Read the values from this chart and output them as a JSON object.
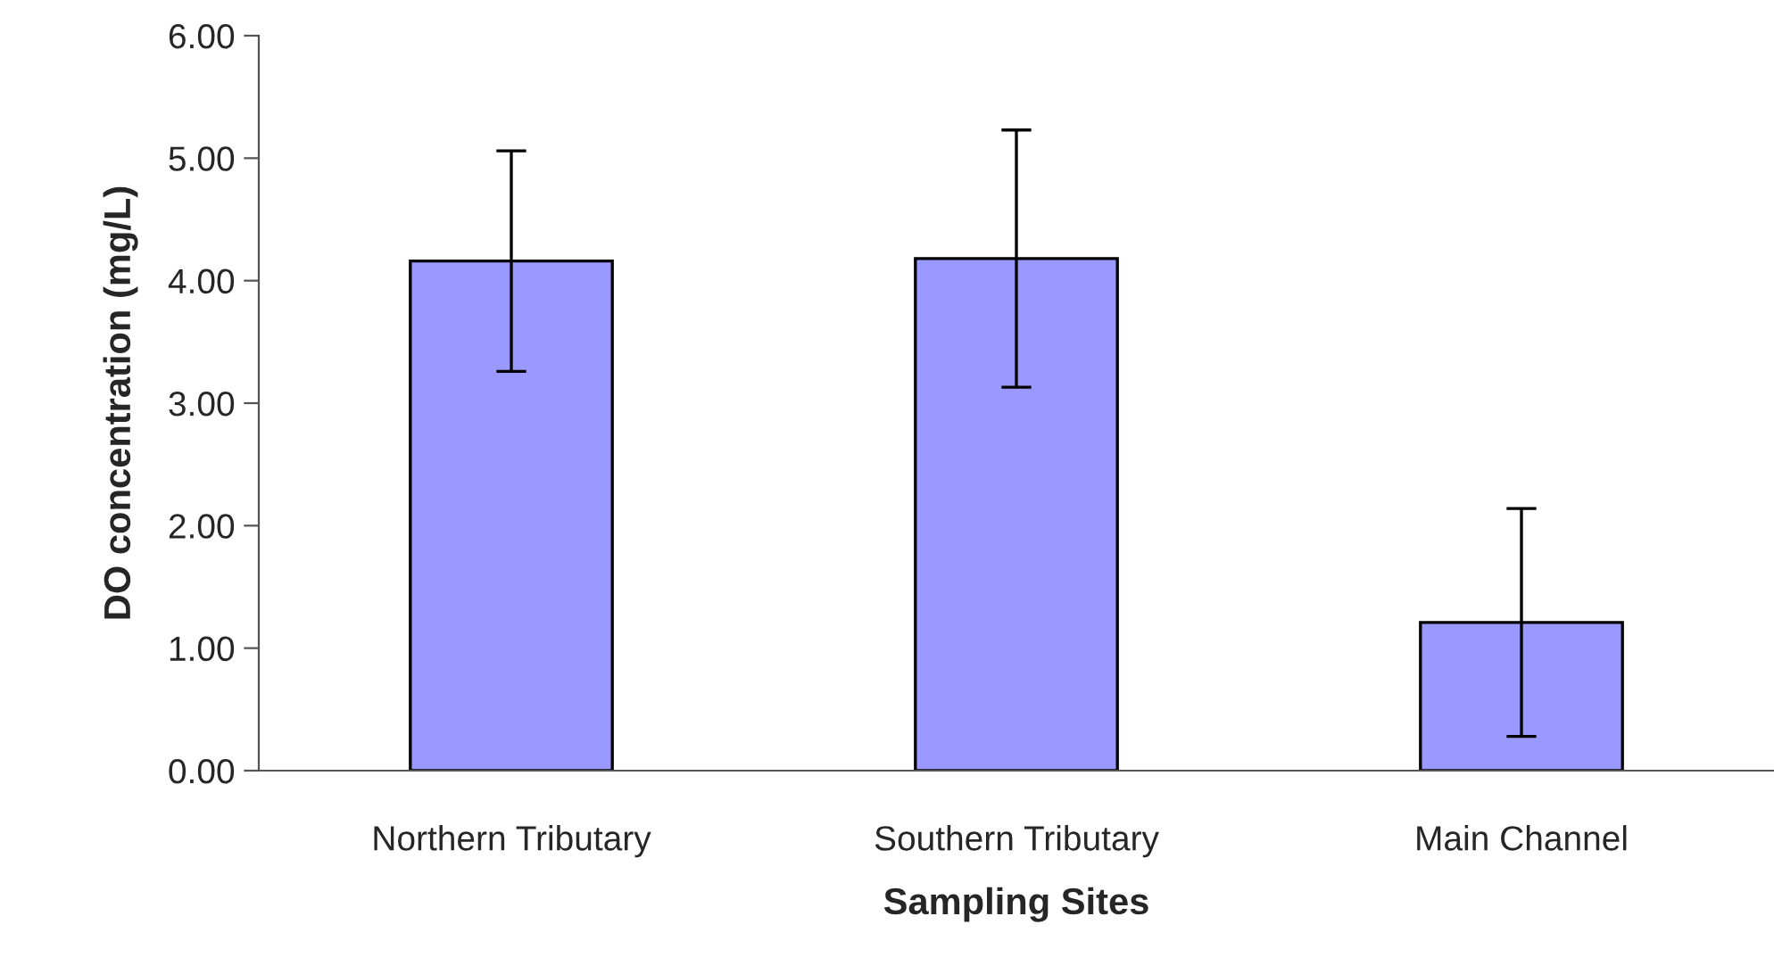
{
  "chart_data": {
    "type": "bar",
    "xlabel": "Sampling Sites",
    "ylabel": "DO concentration (mg/L)",
    "categories": [
      "Northern Tributary",
      "Southern Tributary",
      "Main Channel"
    ],
    "values": [
      4.16,
      4.18,
      1.21
    ],
    "errors": [
      0.9,
      1.05,
      0.93
    ],
    "color": "#9999ff",
    "ylim": [
      0,
      6
    ],
    "yticks": [
      {
        "value": 0,
        "label": "0.00"
      },
      {
        "value": 1,
        "label": "1.00"
      },
      {
        "value": 2,
        "label": "2.00"
      },
      {
        "value": 3,
        "label": "3.00"
      },
      {
        "value": 4,
        "label": "4.00"
      },
      {
        "value": 5,
        "label": "5.00"
      },
      {
        "value": 6,
        "label": "6.00"
      }
    ],
    "grid": false
  }
}
